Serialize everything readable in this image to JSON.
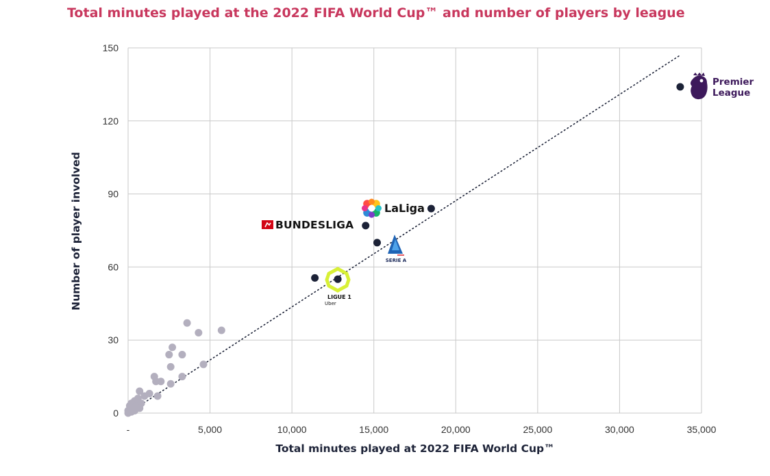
{
  "title": "Total minutes played at the 2022 FIFA World Cup™ and number of players by league",
  "chart_data": {
    "type": "scatter",
    "title": "Total minutes played at the 2022 FIFA World Cup™ and number of players by league",
    "xlabel": "Total minutes played at 2022 FIFA World Cup™",
    "ylabel": "Number of player involved",
    "xlim": [
      0,
      35000
    ],
    "ylim": [
      0,
      150
    ],
    "x_ticks": [
      0,
      5000,
      10000,
      15000,
      20000,
      25000,
      30000,
      35000
    ],
    "x_tick_labels": [
      "-",
      "5,000",
      "10,000",
      "15,000",
      "20,000",
      "25,000",
      "30,000",
      "35,000"
    ],
    "y_ticks": [
      0,
      30,
      60,
      90,
      120,
      150
    ],
    "y_tick_labels": [
      "0",
      "30",
      "60",
      "90",
      "120",
      "150"
    ],
    "grid": true,
    "trendline": {
      "style": "dotted",
      "x": [
        0,
        33700
      ],
      "y": [
        0,
        147
      ]
    },
    "series": [
      {
        "color": "#1c2237",
        "points": [
          {
            "x": 33700,
            "y": 134,
            "logo": "premier-league"
          },
          {
            "x": 18500,
            "y": 84,
            "logo": "laliga"
          },
          {
            "x": 14500,
            "y": 77,
            "logo": "bundesliga"
          },
          {
            "x": 15200,
            "y": 70,
            "logo": "serie-a"
          },
          {
            "x": 11400,
            "y": 55.5,
            "logo": ""
          },
          {
            "x": 12800,
            "y": 55,
            "logo": "ligue-1"
          }
        ]
      },
      {
        "color": "#b3afbe",
        "points": [
          {
            "x": 3600,
            "y": 37
          },
          {
            "x": 5700,
            "y": 34
          },
          {
            "x": 4300,
            "y": 33
          },
          {
            "x": 2700,
            "y": 27
          },
          {
            "x": 2500,
            "y": 24
          },
          {
            "x": 3300,
            "y": 24
          },
          {
            "x": 4600,
            "y": 20
          },
          {
            "x": 2600,
            "y": 19
          },
          {
            "x": 1600,
            "y": 15
          },
          {
            "x": 3300,
            "y": 15
          },
          {
            "x": 1700,
            "y": 13
          },
          {
            "x": 2000,
            "y": 13
          },
          {
            "x": 2600,
            "y": 12
          },
          {
            "x": 1300,
            "y": 8
          },
          {
            "x": 700,
            "y": 9
          },
          {
            "x": 1000,
            "y": 7
          },
          {
            "x": 1800,
            "y": 7
          },
          {
            "x": 600,
            "y": 6
          },
          {
            "x": 400,
            "y": 5
          },
          {
            "x": 800,
            "y": 4
          },
          {
            "x": 200,
            "y": 4
          },
          {
            "x": 500,
            "y": 3
          },
          {
            "x": 100,
            "y": 3
          },
          {
            "x": 300,
            "y": 2
          },
          {
            "x": 700,
            "y": 2
          },
          {
            "x": 100,
            "y": 1.5
          },
          {
            "x": 400,
            "y": 1
          },
          {
            "x": 0,
            "y": 1
          },
          {
            "x": 200,
            "y": 0.5
          },
          {
            "x": 0,
            "y": 0
          }
        ]
      }
    ]
  },
  "logos": {
    "bundesliga": "BUNDESLIGA",
    "laliga": "LaLiga",
    "premier_line1": "Premier",
    "premier_line2": "League",
    "serie_a": "SERIE A",
    "ligue1_line1": "LIGUE 1",
    "ligue1_line2": "Uber"
  },
  "colors": {
    "title": "#c8375d",
    "league_dot": "#1c2237",
    "other_dot": "#b3afbe",
    "grid": "#c9c9c9",
    "premier_league": "#3d195b",
    "bundesliga": "#d20515",
    "ligue1": "#d8f036",
    "serie_a": "#1f64b5"
  }
}
